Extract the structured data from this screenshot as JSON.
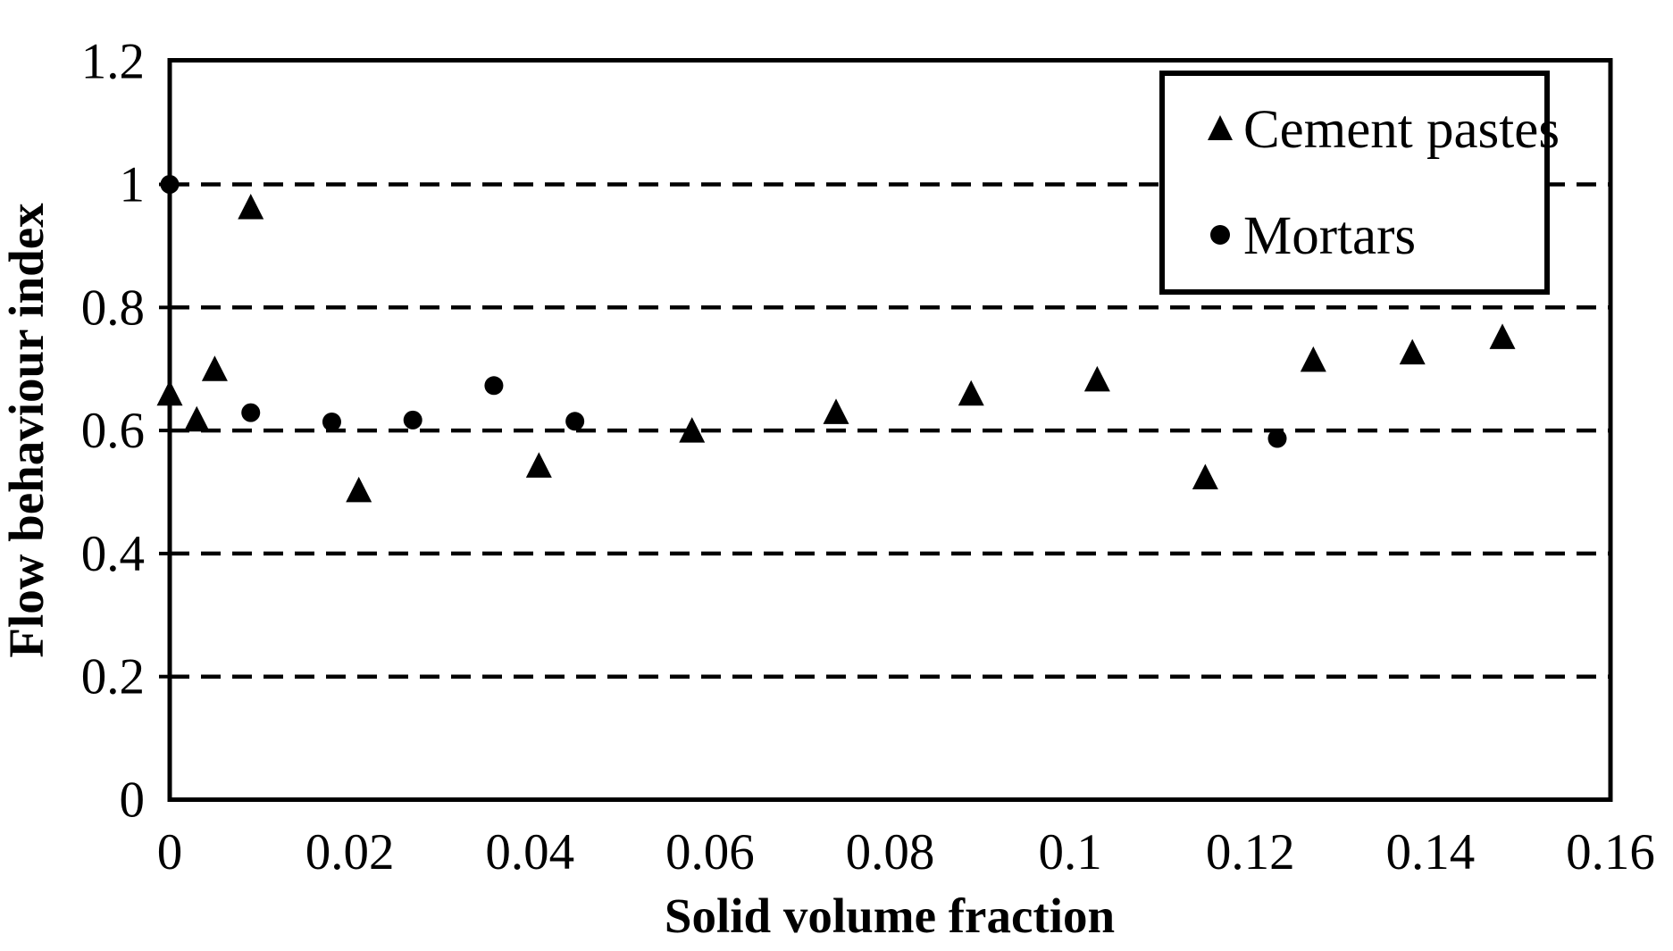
{
  "figure": {
    "background": "#ffffff",
    "foreground": "#000000"
  },
  "chart_data": {
    "type": "scatter",
    "title": "",
    "xlabel": "Solid volume fraction",
    "ylabel": "Flow behaviour index",
    "xlim": [
      0,
      0.16
    ],
    "ylim": [
      0,
      1.2
    ],
    "x_ticks": [
      0,
      0.02,
      0.04,
      0.06,
      0.08,
      0.1,
      0.12,
      0.14,
      0.16
    ],
    "y_ticks": [
      0,
      0.2,
      0.4,
      0.6,
      0.8,
      1,
      1.2
    ],
    "grid": "horizontal-dashed",
    "legend_position": "top-right-inside",
    "series": [
      {
        "name": "Cement pastes",
        "marker": "triangle",
        "color": "#000000",
        "points": [
          [
            0.0,
            0.66
          ],
          [
            0.003,
            0.618
          ],
          [
            0.005,
            0.7
          ],
          [
            0.009,
            0.963
          ],
          [
            0.021,
            0.503
          ],
          [
            0.041,
            0.543
          ],
          [
            0.058,
            0.6
          ],
          [
            0.074,
            0.63
          ],
          [
            0.089,
            0.66
          ],
          [
            0.103,
            0.683
          ],
          [
            0.115,
            0.524
          ],
          [
            0.127,
            0.715
          ],
          [
            0.138,
            0.727
          ],
          [
            0.148,
            0.752
          ]
        ]
      },
      {
        "name": "Mortars",
        "marker": "circle",
        "color": "#000000",
        "points": [
          [
            0.0,
            1.0
          ],
          [
            0.009,
            0.629
          ],
          [
            0.018,
            0.614
          ],
          [
            0.027,
            0.617
          ],
          [
            0.036,
            0.673
          ],
          [
            0.045,
            0.615
          ],
          [
            0.123,
            0.587
          ]
        ]
      }
    ]
  }
}
